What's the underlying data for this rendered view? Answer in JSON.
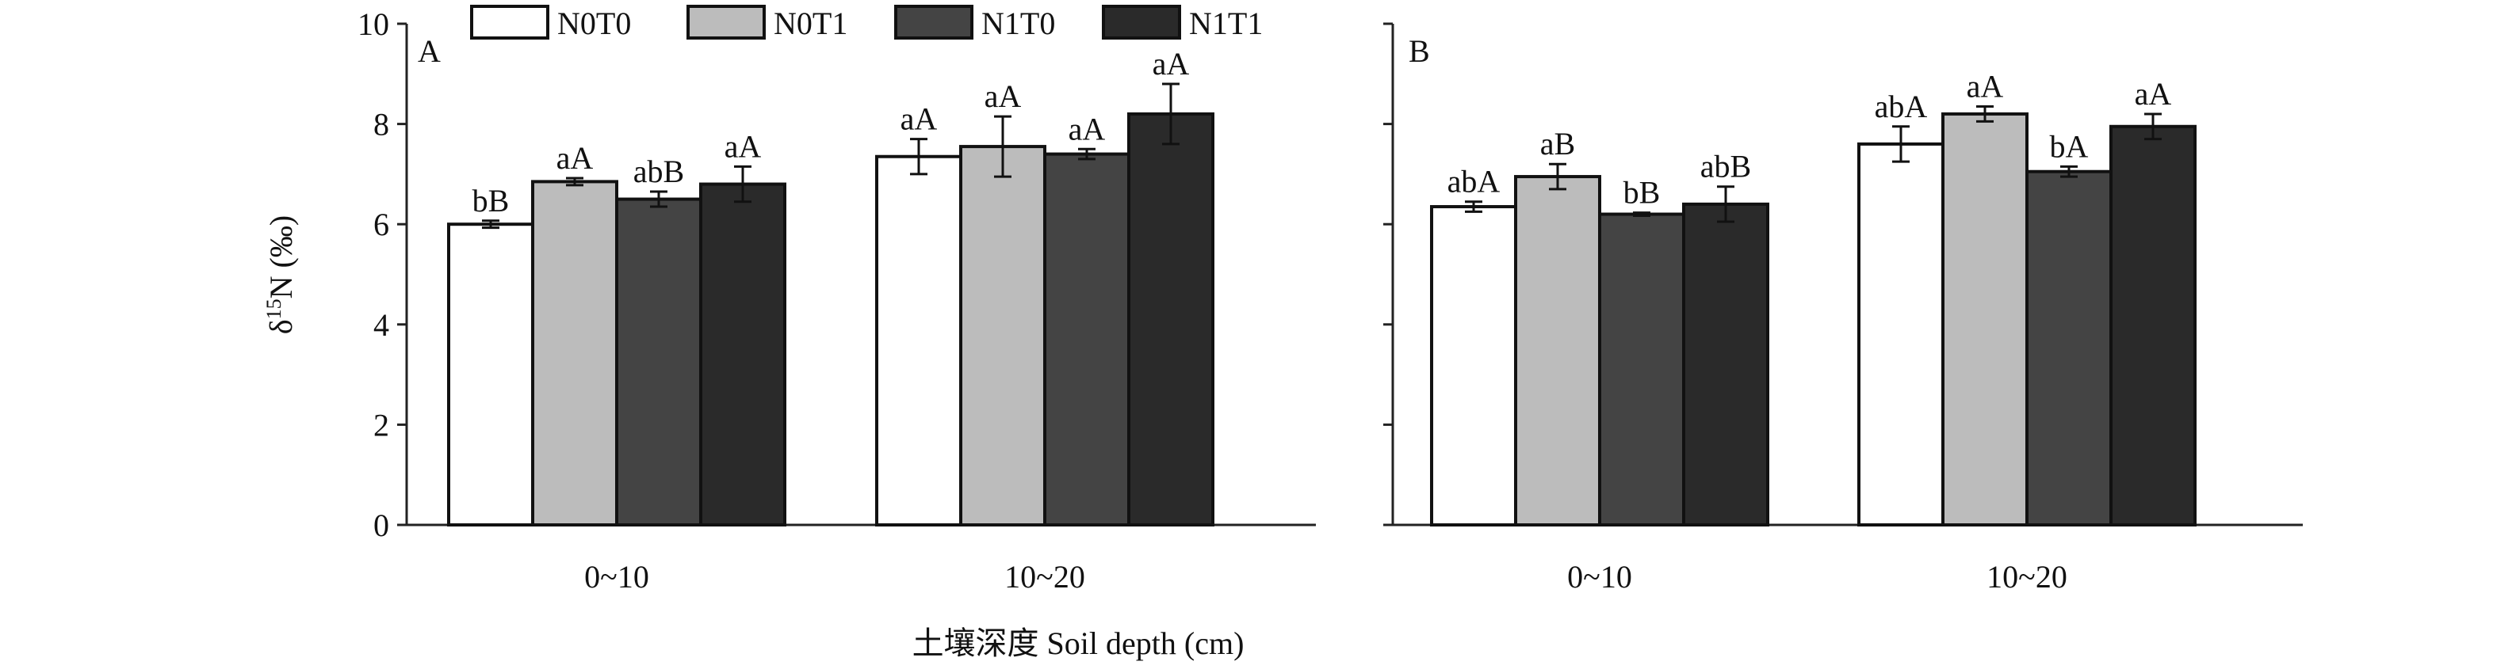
{
  "chart_data": [
    {
      "type": "bar",
      "panel_label": "A",
      "categories": [
        "0~10",
        "10~20"
      ],
      "series": [
        {
          "name": "N0T0",
          "values": [
            6.0,
            7.35
          ],
          "errors": [
            0.07,
            0.35
          ],
          "labels": [
            "bB",
            "aA"
          ]
        },
        {
          "name": "N0T1",
          "values": [
            6.85,
            7.55
          ],
          "errors": [
            0.07,
            0.6
          ],
          "labels": [
            "aA",
            "aA"
          ]
        },
        {
          "name": "N1T0",
          "values": [
            6.5,
            7.4
          ],
          "errors": [
            0.15,
            0.1
          ],
          "labels": [
            "abB",
            "aA"
          ]
        },
        {
          "name": "N1T1",
          "values": [
            6.8,
            8.2
          ],
          "errors": [
            0.35,
            0.6
          ],
          "labels": [
            "aA",
            "aA"
          ]
        }
      ],
      "ylim": [
        0,
        10
      ],
      "yticks": [
        "0",
        "2",
        "4",
        "6",
        "8",
        "10"
      ],
      "ylabel": "δ15N (‰)",
      "ylabel_parts": {
        "base": "δ",
        "sup": "15",
        "rest": "N (‰)"
      },
      "legend": "top"
    },
    {
      "type": "bar",
      "panel_label": "B",
      "categories": [
        "0~10",
        "10~20"
      ],
      "series": [
        {
          "name": "N0T0",
          "values": [
            6.35,
            7.6
          ],
          "errors": [
            0.1,
            0.35
          ],
          "labels": [
            "abA",
            "abA"
          ]
        },
        {
          "name": "N0T1",
          "values": [
            6.95,
            8.2
          ],
          "errors": [
            0.25,
            0.15
          ],
          "labels": [
            "aB",
            "aA"
          ]
        },
        {
          "name": "N1T0",
          "values": [
            6.2,
            7.05
          ],
          "errors": [
            0.03,
            0.1
          ],
          "labels": [
            "bB",
            "bA"
          ]
        },
        {
          "name": "N1T1",
          "values": [
            6.4,
            7.95
          ],
          "errors": [
            0.35,
            0.25
          ],
          "labels": [
            "abB",
            "aA"
          ]
        }
      ],
      "ylim": [
        0,
        10
      ],
      "legend": "none"
    }
  ],
  "xlabel": "土壤深度 Soil depth (cm)",
  "colors": {
    "N0T0": "#ffffff",
    "N0T1": "#bcbcbc",
    "N1T0": "#444444",
    "N1T1": "#2a2a2a",
    "axis": "#222222"
  }
}
